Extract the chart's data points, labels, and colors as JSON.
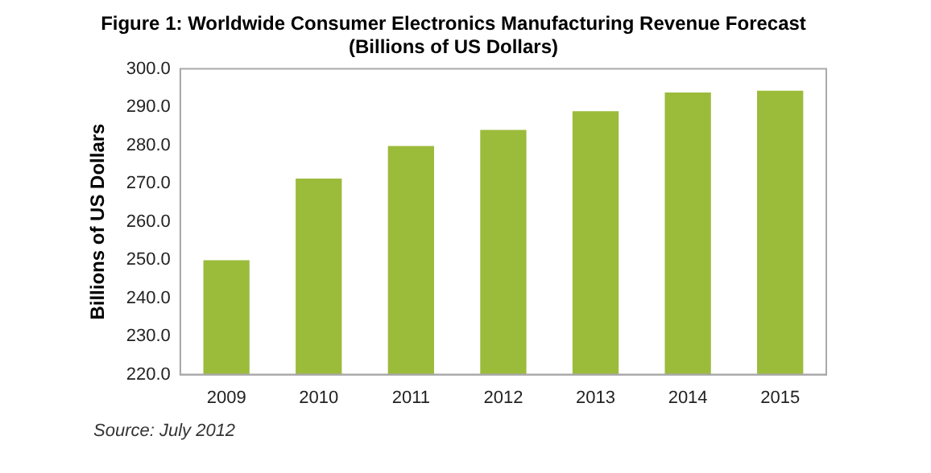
{
  "chart_data": {
    "type": "bar",
    "title": [
      "Figure 1: Worldwide Consumer Electronics Manufacturing Revenue Forecast",
      "(Billions of US Dollars)"
    ],
    "ylabel": "Billions of US Dollars",
    "categories": [
      "2009",
      "2010",
      "2011",
      "2012",
      "2013",
      "2014",
      "2015"
    ],
    "values": [
      249.9,
      271.3,
      279.8,
      284.0,
      288.9,
      293.8,
      294.3
    ],
    "color": "#9bbb3b",
    "ylim": [
      220,
      300
    ],
    "yticks": [
      {
        "value": 220,
        "label": "220.0"
      },
      {
        "value": 230,
        "label": "230.0"
      },
      {
        "value": 240,
        "label": "240.0"
      },
      {
        "value": 250,
        "label": "250.0"
      },
      {
        "value": 260,
        "label": "260.0"
      },
      {
        "value": 270,
        "label": "270.0"
      },
      {
        "value": 280,
        "label": "280.0"
      },
      {
        "value": 290,
        "label": "290.0"
      },
      {
        "value": 300,
        "label": "300.0"
      }
    ],
    "grid": false,
    "annotations": [
      "Source: July 2012"
    ]
  }
}
